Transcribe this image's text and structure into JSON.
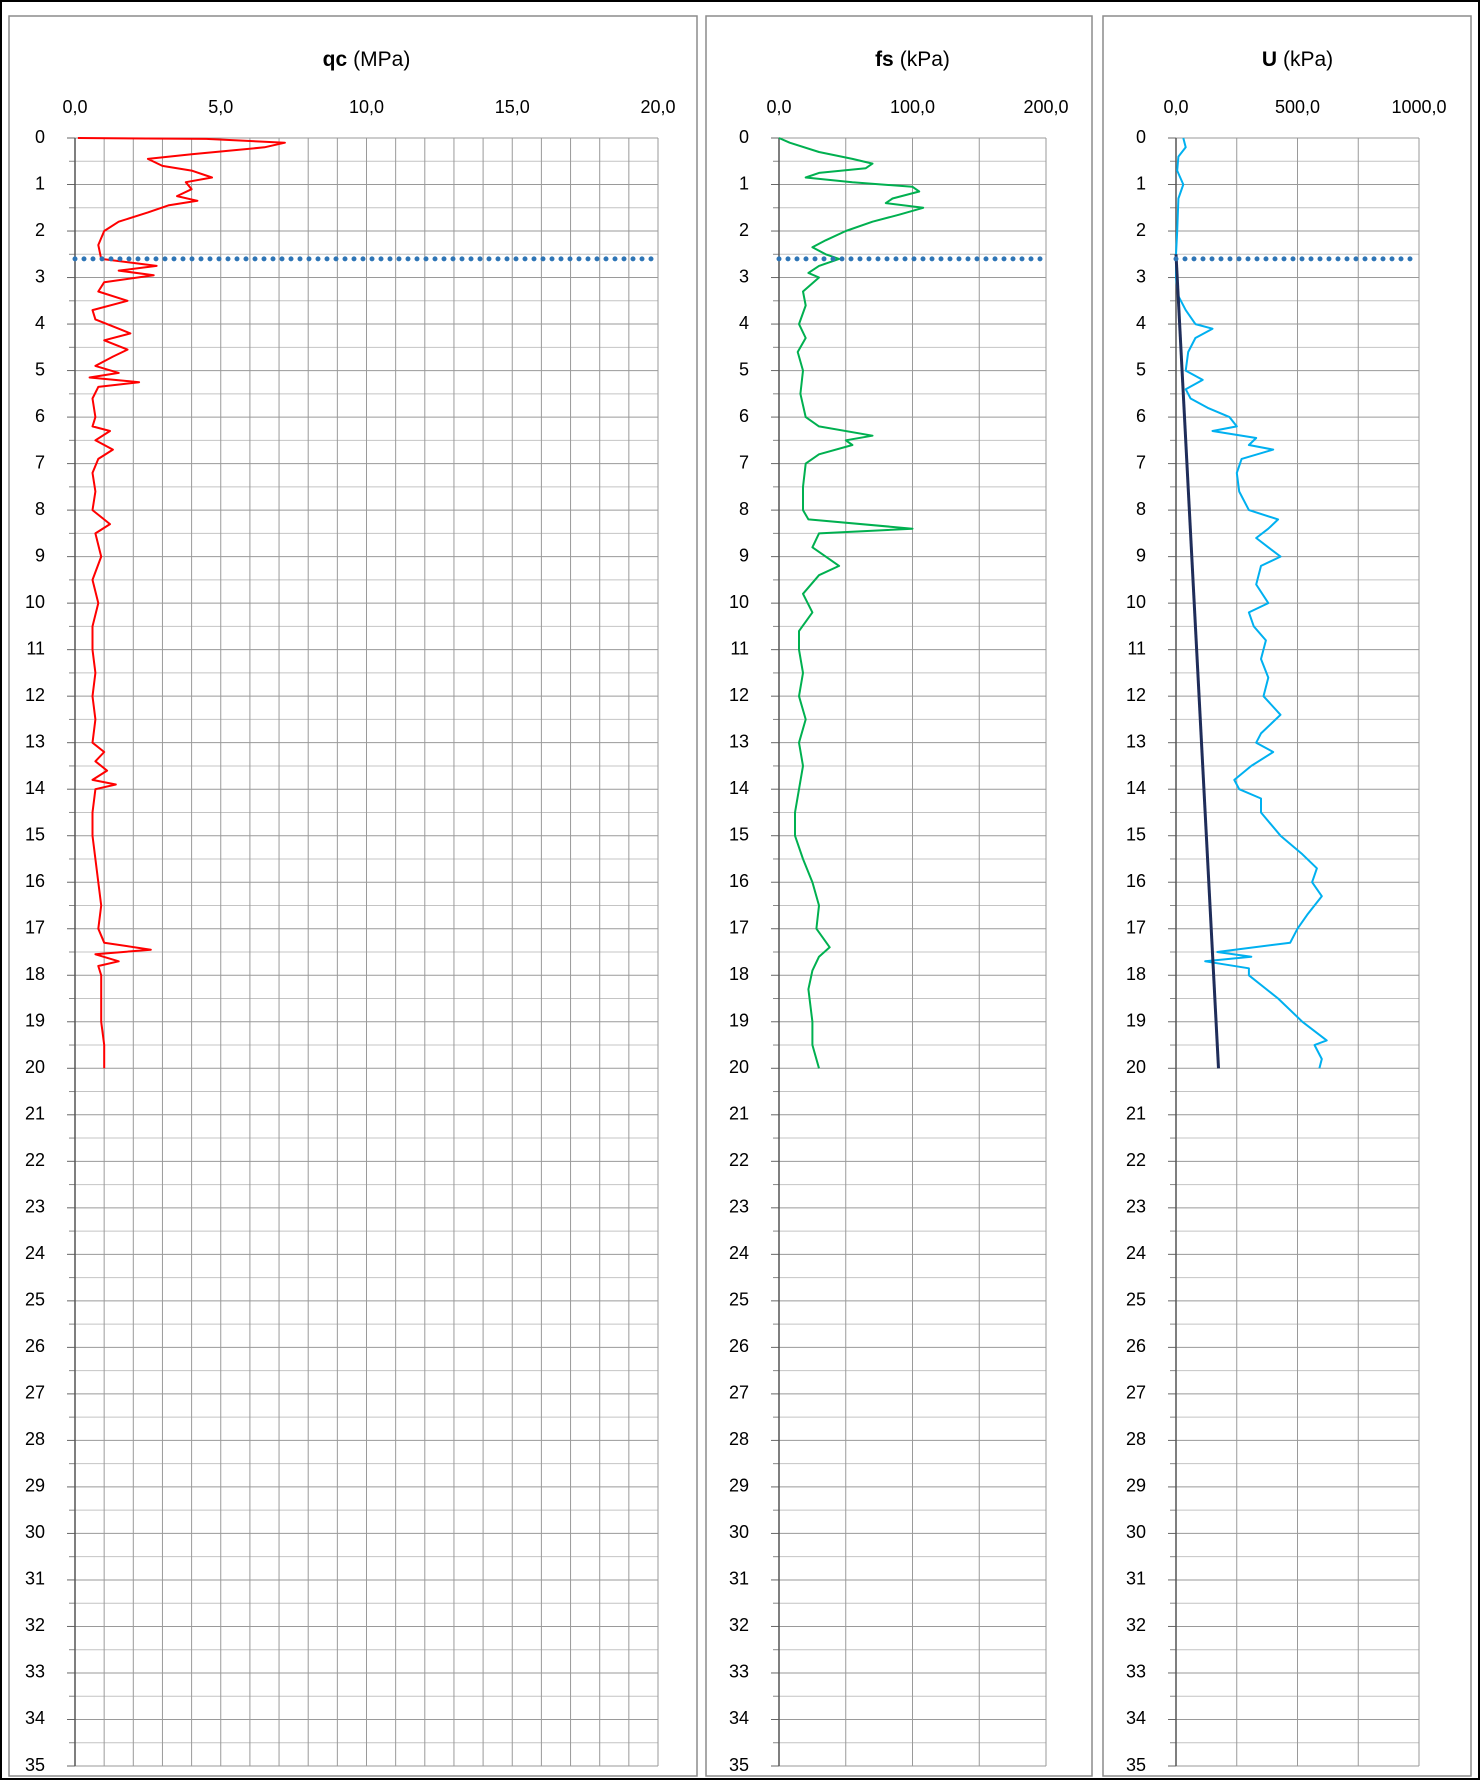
{
  "chart_data": [
    {
      "type": "line",
      "title": "qc",
      "unit": "(MPa)",
      "xlim": [
        0,
        20
      ],
      "xticks": [
        {
          "value": 0,
          "label": "0,0"
        },
        {
          "value": 5,
          "label": "5,0"
        },
        {
          "value": 10,
          "label": "10,0"
        },
        {
          "value": 15,
          "label": "15,0"
        },
        {
          "value": 20,
          "label": "20,0"
        }
      ],
      "xgrid": [
        1,
        2,
        3,
        4,
        6,
        7,
        8,
        9,
        11,
        12,
        13,
        14,
        16,
        17,
        18,
        19
      ],
      "ylim": [
        0,
        35
      ],
      "yticks": [
        0,
        1,
        2,
        3,
        4,
        5,
        6,
        7,
        8,
        9,
        10,
        11,
        12,
        13,
        14,
        15,
        16,
        17,
        18,
        19,
        20,
        21,
        22,
        23,
        24,
        25,
        26,
        27,
        28,
        29,
        30,
        31,
        32,
        33,
        34,
        35
      ],
      "yminor": [
        0.5,
        1.5,
        2.5,
        3.5,
        4.5,
        5.5,
        6.5,
        7.5,
        8.5,
        9.5,
        10.5,
        11.5,
        12.5,
        13.5,
        14.5,
        15.5,
        16.5,
        17.5,
        18.5,
        19.5,
        20.5,
        21.5,
        22.5,
        23.5,
        24.5,
        25.5,
        26.5,
        27.5,
        28.5,
        29.5,
        30.5,
        31.5,
        32.5,
        33.5,
        34.5
      ],
      "y_inverted": true,
      "grid": true,
      "series": [
        {
          "color": "#ff0000",
          "style": "solid",
          "y": [
            0,
            0.02,
            0.1,
            0.2,
            0.35,
            0.45,
            0.6,
            0.7,
            0.85,
            0.95,
            1.1,
            1.25,
            1.35,
            1.45,
            1.6,
            1.8,
            2.0,
            2.3,
            2.6,
            2.75,
            2.85,
            2.95,
            3.1,
            3.3,
            3.5,
            3.7,
            3.9,
            4.1,
            4.2,
            4.35,
            4.55,
            4.7,
            4.9,
            5.05,
            5.15,
            5.25,
            5.35,
            5.6,
            6.0,
            6.2,
            6.3,
            6.5,
            6.7,
            6.9,
            7.2,
            7.6,
            8.0,
            8.3,
            8.5,
            9.0,
            9.5,
            10.0,
            10.5,
            11.0,
            11.5,
            12.0,
            12.5,
            13.0,
            13.2,
            13.4,
            13.6,
            13.8,
            13.9,
            14.0,
            14.5,
            15.0,
            15.5,
            16.0,
            16.5,
            17.0,
            17.3,
            17.45,
            17.55,
            17.7,
            17.8,
            18.0,
            18.5,
            19.0,
            19.5,
            20.0
          ],
          "x": [
            0.1,
            4.5,
            7.2,
            6.5,
            4.0,
            2.5,
            3.0,
            4.0,
            4.7,
            3.8,
            4.0,
            3.5,
            4.2,
            3.2,
            2.5,
            1.5,
            1.0,
            0.8,
            0.9,
            2.8,
            1.5,
            2.7,
            1.0,
            0.8,
            1.8,
            0.6,
            0.7,
            1.5,
            1.9,
            1.0,
            1.8,
            1.3,
            0.7,
            1.5,
            0.5,
            2.2,
            0.8,
            0.6,
            0.7,
            0.6,
            1.2,
            0.7,
            1.3,
            0.8,
            0.6,
            0.7,
            0.6,
            1.2,
            0.7,
            0.9,
            0.6,
            0.8,
            0.6,
            0.6,
            0.7,
            0.6,
            0.7,
            0.6,
            1.0,
            0.7,
            1.1,
            0.6,
            1.4,
            0.7,
            0.6,
            0.6,
            0.7,
            0.8,
            0.9,
            0.8,
            1.0,
            2.6,
            0.7,
            1.5,
            0.8,
            0.9,
            0.9,
            0.9,
            1.0,
            1.0
          ]
        },
        {
          "color": "#2e75b6",
          "style": "dotted",
          "y": [
            2.6,
            2.6
          ],
          "x": [
            0,
            20
          ]
        }
      ]
    },
    {
      "type": "line",
      "title": "fs",
      "unit": "(kPa)",
      "xlim": [
        0,
        200
      ],
      "xticks": [
        {
          "value": 0,
          "label": "0,0"
        },
        {
          "value": 100,
          "label": "100,0"
        },
        {
          "value": 200,
          "label": "200,0"
        }
      ],
      "xgrid": [
        50,
        150
      ],
      "ylim": [
        0,
        35
      ],
      "yticks": [
        0,
        1,
        2,
        3,
        4,
        5,
        6,
        7,
        8,
        9,
        10,
        11,
        12,
        13,
        14,
        15,
        16,
        17,
        18,
        19,
        20,
        21,
        22,
        23,
        24,
        25,
        26,
        27,
        28,
        29,
        30,
        31,
        32,
        33,
        34,
        35
      ],
      "yminor": [
        0.5,
        1.5,
        2.5,
        3.5,
        4.5,
        5.5,
        6.5,
        7.5,
        8.5,
        9.5,
        10.5,
        11.5,
        12.5,
        13.5,
        14.5,
        15.5,
        16.5,
        17.5,
        18.5,
        19.5,
        20.5,
        21.5,
        22.5,
        23.5,
        24.5,
        25.5,
        26.5,
        27.5,
        28.5,
        29.5,
        30.5,
        31.5,
        32.5,
        33.5,
        34.5
      ],
      "y_inverted": true,
      "grid": true,
      "series": [
        {
          "color": "#00b050",
          "style": "solid",
          "y": [
            0,
            0.1,
            0.3,
            0.45,
            0.55,
            0.65,
            0.75,
            0.85,
            0.95,
            1.05,
            1.15,
            1.3,
            1.4,
            1.5,
            1.65,
            1.8,
            2.0,
            2.2,
            2.35,
            2.5,
            2.6,
            2.75,
            2.9,
            3.0,
            3.3,
            3.6,
            4.0,
            4.3,
            4.6,
            5.0,
            5.5,
            6.0,
            6.2,
            6.4,
            6.5,
            6.6,
            6.8,
            7.0,
            7.5,
            8.0,
            8.2,
            8.4,
            8.5,
            8.8,
            9.0,
            9.2,
            9.4,
            9.8,
            10.2,
            10.6,
            11.0,
            11.5,
            12.0,
            12.5,
            13.0,
            13.5,
            14.0,
            14.5,
            15.0,
            15.5,
            16.0,
            16.5,
            17.0,
            17.4,
            17.6,
            17.9,
            18.3,
            19.0,
            19.5,
            20.0
          ],
          "x": [
            0,
            8,
            30,
            55,
            70,
            65,
            30,
            20,
            55,
            100,
            105,
            85,
            80,
            108,
            90,
            70,
            50,
            35,
            25,
            35,
            45,
            30,
            22,
            30,
            18,
            20,
            15,
            20,
            14,
            18,
            16,
            20,
            30,
            70,
            50,
            55,
            30,
            20,
            18,
            18,
            22,
            100,
            30,
            25,
            35,
            45,
            30,
            18,
            25,
            15,
            15,
            18,
            15,
            20,
            15,
            18,
            15,
            12,
            12,
            18,
            25,
            30,
            28,
            38,
            30,
            25,
            22,
            25,
            25,
            30
          ]
        },
        {
          "color": "#2e75b6",
          "style": "dotted",
          "y": [
            2.6,
            2.6
          ],
          "x": [
            0,
            200
          ]
        }
      ]
    },
    {
      "type": "line",
      "title": "U",
      "unit": "(kPa)",
      "xlim": [
        0,
        1000
      ],
      "xticks": [
        {
          "value": 0,
          "label": "0,0"
        },
        {
          "value": 500,
          "label": "500,0"
        },
        {
          "value": 1000,
          "label": "1000,0"
        }
      ],
      "xgrid": [
        250,
        750
      ],
      "ylim": [
        0,
        35
      ],
      "yticks": [
        0,
        1,
        2,
        3,
        4,
        5,
        6,
        7,
        8,
        9,
        10,
        11,
        12,
        13,
        14,
        15,
        16,
        17,
        18,
        19,
        20,
        21,
        22,
        23,
        24,
        25,
        26,
        27,
        28,
        29,
        30,
        31,
        32,
        33,
        34,
        35
      ],
      "yminor": [
        0.5,
        1.5,
        2.5,
        3.5,
        4.5,
        5.5,
        6.5,
        7.5,
        8.5,
        9.5,
        10.5,
        11.5,
        12.5,
        13.5,
        14.5,
        15.5,
        16.5,
        17.5,
        18.5,
        19.5,
        20.5,
        21.5,
        22.5,
        23.5,
        24.5,
        25.5,
        26.5,
        27.5,
        28.5,
        29.5,
        30.5,
        31.5,
        32.5,
        33.5,
        34.5
      ],
      "y_inverted": true,
      "grid": true,
      "series": [
        {
          "color": "#00b0f0",
          "style": "solid",
          "y": [
            0,
            0.2,
            0.4,
            0.7,
            1.0,
            1.3,
            2.0,
            2.5,
            3.0,
            3.4,
            3.7,
            4.0,
            4.1,
            4.3,
            4.6,
            5.0,
            5.2,
            5.4,
            5.6,
            5.8,
            6.0,
            6.2,
            6.3,
            6.45,
            6.6,
            6.7,
            6.9,
            7.2,
            7.6,
            8.0,
            8.2,
            8.4,
            8.6,
            8.8,
            9.0,
            9.2,
            9.6,
            10.0,
            10.2,
            10.5,
            10.8,
            11.2,
            11.6,
            12.0,
            12.4,
            12.8,
            13.0,
            13.2,
            13.5,
            13.8,
            14.0,
            14.2,
            14.5,
            15.0,
            15.4,
            15.7,
            16.0,
            16.3,
            16.7,
            17.0,
            17.3,
            17.5,
            17.6,
            17.7,
            17.85,
            18.0,
            18.5,
            19.0,
            19.4,
            19.5,
            19.8,
            20.0
          ],
          "x": [
            30,
            40,
            10,
            5,
            30,
            10,
            5,
            0,
            0,
            10,
            40,
            80,
            150,
            80,
            50,
            40,
            110,
            40,
            60,
            130,
            220,
            250,
            150,
            330,
            300,
            400,
            270,
            250,
            260,
            300,
            420,
            380,
            330,
            380,
            430,
            350,
            330,
            380,
            300,
            320,
            370,
            350,
            380,
            360,
            430,
            350,
            330,
            400,
            310,
            240,
            260,
            350,
            350,
            430,
            520,
            580,
            560,
            600,
            540,
            500,
            470,
            170,
            310,
            120,
            300,
            300,
            420,
            520,
            620,
            570,
            600,
            590
          ]
        },
        {
          "color": "#1f2d5a",
          "style": "solid",
          "y": [
            2.5,
            20
          ],
          "x": [
            0,
            175
          ]
        },
        {
          "color": "#2e75b6",
          "style": "dotted",
          "y": [
            2.6,
            2.6
          ],
          "x": [
            0,
            1000
          ]
        }
      ]
    }
  ]
}
